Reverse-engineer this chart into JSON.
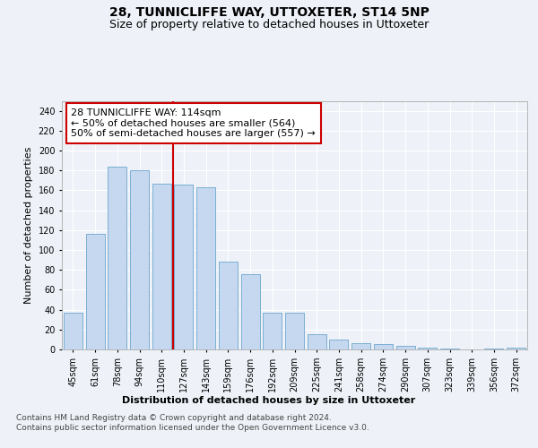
{
  "title": "28, TUNNICLIFFE WAY, UTTOXETER, ST14 5NP",
  "subtitle": "Size of property relative to detached houses in Uttoxeter",
  "xlabel": "Distribution of detached houses by size in Uttoxeter",
  "ylabel": "Number of detached properties",
  "categories": [
    "45sqm",
    "61sqm",
    "78sqm",
    "94sqm",
    "110sqm",
    "127sqm",
    "143sqm",
    "159sqm",
    "176sqm",
    "192sqm",
    "209sqm",
    "225sqm",
    "241sqm",
    "258sqm",
    "274sqm",
    "290sqm",
    "307sqm",
    "323sqm",
    "339sqm",
    "356sqm",
    "372sqm"
  ],
  "values": [
    37,
    116,
    184,
    180,
    167,
    166,
    163,
    88,
    76,
    37,
    37,
    15,
    10,
    6,
    5,
    4,
    2,
    1,
    0,
    1,
    2
  ],
  "bar_color": "#c5d8ef",
  "bar_edge_color": "#7bafd4",
  "vline_x": 4.5,
  "vline_color": "#cc0000",
  "annotation_text": "28 TUNNICLIFFE WAY: 114sqm\n← 50% of detached houses are smaller (564)\n50% of semi-detached houses are larger (557) →",
  "annotation_box_color": "#ffffff",
  "annotation_box_edge": "#cc0000",
  "ylim": [
    0,
    250
  ],
  "yticks": [
    0,
    20,
    40,
    60,
    80,
    100,
    120,
    140,
    160,
    180,
    200,
    220,
    240
  ],
  "footer_line1": "Contains HM Land Registry data © Crown copyright and database right 2024.",
  "footer_line2": "Contains public sector information licensed under the Open Government Licence v3.0.",
  "bg_color": "#eef2f8",
  "grid_color": "#ffffff",
  "title_fontsize": 10,
  "subtitle_fontsize": 9,
  "axis_label_fontsize": 8,
  "tick_fontsize": 7,
  "annotation_fontsize": 8,
  "footer_fontsize": 6.5
}
